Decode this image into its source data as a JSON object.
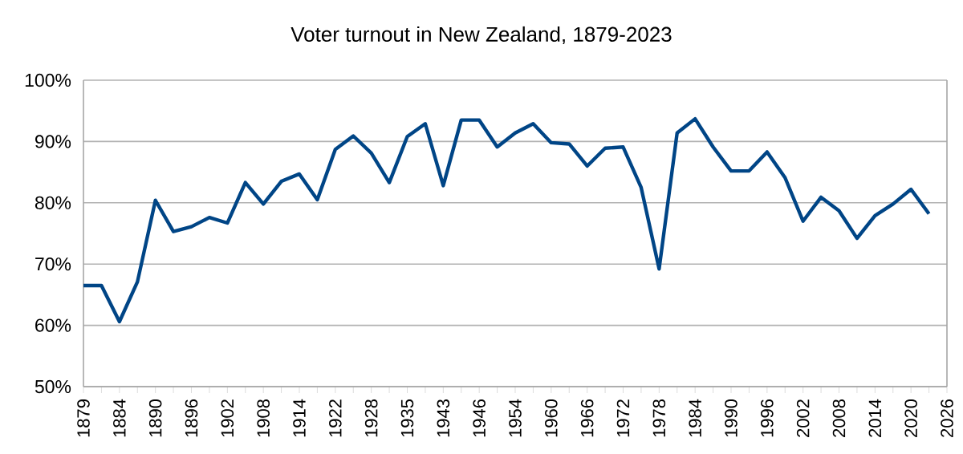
{
  "chart_data": {
    "type": "line",
    "title": "Voter turnout in New Zealand, 1879-2023",
    "categories": [
      "1879",
      null,
      "1884",
      null,
      "1890",
      null,
      "1896",
      null,
      "1902",
      null,
      "1908",
      null,
      "1914",
      null,
      "1922",
      null,
      "1928",
      null,
      "1935",
      null,
      "1943",
      null,
      "1946",
      null,
      "1954",
      null,
      "1960",
      null,
      "1966",
      null,
      "1972",
      null,
      "1978",
      null,
      "1984",
      null,
      "1990",
      null,
      "1996",
      null,
      "2002",
      null,
      "2008",
      null,
      "2014",
      null,
      "2020",
      null,
      "2026"
    ],
    "series": [
      {
        "color": "#004586",
        "values": [
          66.5,
          66.5,
          60.6,
          67.1,
          80.4,
          75.3,
          76.1,
          77.6,
          76.7,
          83.3,
          79.8,
          83.5,
          84.7,
          80.5,
          88.7,
          90.9,
          88.1,
          83.3,
          90.8,
          92.9,
          82.8,
          93.5,
          93.5,
          89.1,
          91.4,
          92.9,
          89.8,
          89.6,
          86.0,
          88.9,
          89.1,
          82.5,
          69.2,
          91.4,
          93.7,
          89.1,
          85.2,
          85.2,
          88.3,
          84.1,
          77.0,
          80.9,
          78.7,
          74.2,
          77.9,
          79.8,
          82.2,
          78.2,
          null
        ]
      }
    ],
    "ylim": [
      50,
      100
    ],
    "yticks": [
      {
        "value": 50,
        "label": "50%"
      },
      {
        "value": 60,
        "label": "60%"
      },
      {
        "value": 70,
        "label": "70%"
      },
      {
        "value": 80,
        "label": "80%"
      },
      {
        "value": 90,
        "label": "90%"
      },
      {
        "value": 100,
        "label": "100%"
      }
    ],
    "grid": "y",
    "marker": "none",
    "line_style": "solid"
  }
}
